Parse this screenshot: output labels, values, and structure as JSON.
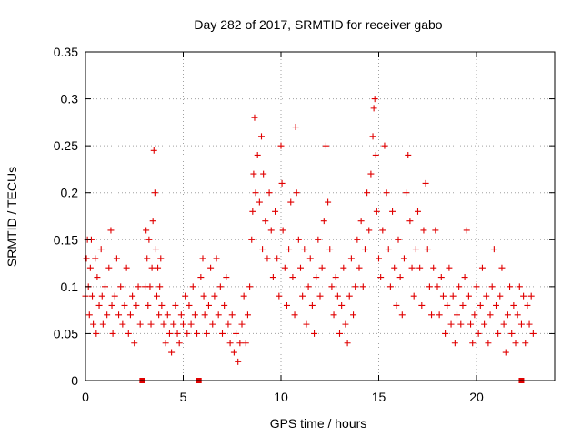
{
  "chart_data": {
    "type": "scatter",
    "title": "Day 282 of 2017, SRMTID for receiver gabo",
    "xlabel": "GPS time / hours",
    "ylabel": "SRMTID / TECUs",
    "xlim": [
      0,
      24
    ],
    "ylim": [
      0,
      0.35
    ],
    "x_ticks": [
      "0",
      "5",
      "10",
      "15",
      "20"
    ],
    "y_ticks": [
      "0",
      "0.05",
      "0.1",
      "0.15",
      "0.2",
      "0.25",
      "0.3",
      "0.35"
    ],
    "grid": true,
    "marker": "+",
    "series_color": "#e00000",
    "data_gap_markers_x": [
      2.9,
      5.8,
      22.3
    ],
    "series": [
      {
        "name": "SRMTID",
        "points": [
          [
            0.0,
            0.09
          ],
          [
            0.05,
            0.13
          ],
          [
            0.1,
            0.15
          ],
          [
            0.15,
            0.1
          ],
          [
            0.2,
            0.07
          ],
          [
            0.25,
            0.12
          ],
          [
            0.3,
            0.15
          ],
          [
            0.35,
            0.09
          ],
          [
            0.4,
            0.06
          ],
          [
            0.5,
            0.13
          ],
          [
            0.55,
            0.05
          ],
          [
            0.6,
            0.11
          ],
          [
            0.7,
            0.08
          ],
          [
            0.8,
            0.14
          ],
          [
            0.85,
            0.09
          ],
          [
            0.9,
            0.06
          ],
          [
            1.0,
            0.1
          ],
          [
            1.1,
            0.07
          ],
          [
            1.2,
            0.12
          ],
          [
            1.3,
            0.16
          ],
          [
            1.35,
            0.08
          ],
          [
            1.4,
            0.05
          ],
          [
            1.5,
            0.09
          ],
          [
            1.6,
            0.13
          ],
          [
            1.7,
            0.07
          ],
          [
            1.8,
            0.1
          ],
          [
            1.9,
            0.06
          ],
          [
            2.0,
            0.08
          ],
          [
            2.1,
            0.12
          ],
          [
            2.2,
            0.05
          ],
          [
            2.3,
            0.07
          ],
          [
            2.4,
            0.09
          ],
          [
            2.5,
            0.04
          ],
          [
            2.6,
            0.08
          ],
          [
            2.7,
            0.1
          ],
          [
            2.8,
            0.06
          ],
          [
            3.05,
            0.1
          ],
          [
            3.1,
            0.16
          ],
          [
            3.15,
            0.13
          ],
          [
            3.2,
            0.08
          ],
          [
            3.25,
            0.15
          ],
          [
            3.3,
            0.1
          ],
          [
            3.35,
            0.06
          ],
          [
            3.4,
            0.12
          ],
          [
            3.45,
            0.17
          ],
          [
            3.5,
            0.245
          ],
          [
            3.55,
            0.2
          ],
          [
            3.6,
            0.14
          ],
          [
            3.65,
            0.09
          ],
          [
            3.7,
            0.12
          ],
          [
            3.75,
            0.07
          ],
          [
            3.8,
            0.1
          ],
          [
            3.85,
            0.13
          ],
          [
            3.9,
            0.08
          ],
          [
            4.0,
            0.06
          ],
          [
            4.1,
            0.04
          ],
          [
            4.2,
            0.07
          ],
          [
            4.3,
            0.05
          ],
          [
            4.4,
            0.03
          ],
          [
            4.5,
            0.06
          ],
          [
            4.6,
            0.08
          ],
          [
            4.7,
            0.05
          ],
          [
            4.8,
            0.04
          ],
          [
            4.9,
            0.07
          ],
          [
            5.0,
            0.06
          ],
          [
            5.1,
            0.09
          ],
          [
            5.2,
            0.05
          ],
          [
            5.3,
            0.08
          ],
          [
            5.4,
            0.06
          ],
          [
            5.5,
            0.1
          ],
          [
            5.6,
            0.07
          ],
          [
            5.7,
            0.05
          ],
          [
            5.9,
            0.11
          ],
          [
            6.0,
            0.13
          ],
          [
            6.05,
            0.09
          ],
          [
            6.1,
            0.07
          ],
          [
            6.2,
            0.05
          ],
          [
            6.3,
            0.08
          ],
          [
            6.4,
            0.12
          ],
          [
            6.5,
            0.06
          ],
          [
            6.6,
            0.09
          ],
          [
            6.7,
            0.13
          ],
          [
            6.8,
            0.07
          ],
          [
            6.9,
            0.1
          ],
          [
            7.0,
            0.05
          ],
          [
            7.1,
            0.08
          ],
          [
            7.2,
            0.11
          ],
          [
            7.3,
            0.06
          ],
          [
            7.4,
            0.04
          ],
          [
            7.5,
            0.07
          ],
          [
            7.6,
            0.03
          ],
          [
            7.7,
            0.05
          ],
          [
            7.8,
            0.02
          ],
          [
            7.9,
            0.04
          ],
          [
            8.0,
            0.06
          ],
          [
            8.1,
            0.09
          ],
          [
            8.2,
            0.04
          ],
          [
            8.3,
            0.07
          ],
          [
            8.4,
            0.1
          ],
          [
            8.5,
            0.15
          ],
          [
            8.55,
            0.18
          ],
          [
            8.6,
            0.22
          ],
          [
            8.65,
            0.28
          ],
          [
            8.7,
            0.2
          ],
          [
            8.8,
            0.24
          ],
          [
            8.9,
            0.19
          ],
          [
            9.0,
            0.26
          ],
          [
            9.05,
            0.14
          ],
          [
            9.1,
            0.22
          ],
          [
            9.2,
            0.17
          ],
          [
            9.3,
            0.13
          ],
          [
            9.4,
            0.2
          ],
          [
            9.5,
            0.16
          ],
          [
            9.6,
            0.11
          ],
          [
            9.7,
            0.18
          ],
          [
            9.8,
            0.13
          ],
          [
            9.9,
            0.09
          ],
          [
            10.0,
            0.25
          ],
          [
            10.05,
            0.21
          ],
          [
            10.1,
            0.16
          ],
          [
            10.2,
            0.12
          ],
          [
            10.3,
            0.08
          ],
          [
            10.4,
            0.14
          ],
          [
            10.5,
            0.19
          ],
          [
            10.6,
            0.11
          ],
          [
            10.7,
            0.07
          ],
          [
            10.75,
            0.27
          ],
          [
            10.8,
            0.2
          ],
          [
            10.9,
            0.15
          ],
          [
            11.0,
            0.12
          ],
          [
            11.1,
            0.09
          ],
          [
            11.2,
            0.14
          ],
          [
            11.3,
            0.06
          ],
          [
            11.4,
            0.1
          ],
          [
            11.5,
            0.13
          ],
          [
            11.6,
            0.08
          ],
          [
            11.7,
            0.05
          ],
          [
            11.8,
            0.11
          ],
          [
            11.9,
            0.15
          ],
          [
            12.0,
            0.09
          ],
          [
            12.1,
            0.12
          ],
          [
            12.2,
            0.17
          ],
          [
            12.3,
            0.25
          ],
          [
            12.4,
            0.19
          ],
          [
            12.5,
            0.14
          ],
          [
            12.6,
            0.1
          ],
          [
            12.7,
            0.07
          ],
          [
            12.8,
            0.11
          ],
          [
            12.9,
            0.09
          ],
          [
            13.0,
            0.05
          ],
          [
            13.1,
            0.08
          ],
          [
            13.2,
            0.12
          ],
          [
            13.3,
            0.06
          ],
          [
            13.4,
            0.04
          ],
          [
            13.5,
            0.09
          ],
          [
            13.6,
            0.13
          ],
          [
            13.7,
            0.07
          ],
          [
            13.8,
            0.1
          ],
          [
            13.9,
            0.15
          ],
          [
            14.0,
            0.12
          ],
          [
            14.1,
            0.17
          ],
          [
            14.2,
            0.1
          ],
          [
            14.3,
            0.14
          ],
          [
            14.4,
            0.2
          ],
          [
            14.5,
            0.16
          ],
          [
            14.6,
            0.22
          ],
          [
            14.7,
            0.26
          ],
          [
            14.75,
            0.29
          ],
          [
            14.8,
            0.3
          ],
          [
            14.85,
            0.24
          ],
          [
            14.9,
            0.18
          ],
          [
            15.0,
            0.13
          ],
          [
            15.1,
            0.11
          ],
          [
            15.2,
            0.16
          ],
          [
            15.3,
            0.25
          ],
          [
            15.4,
            0.2
          ],
          [
            15.5,
            0.14
          ],
          [
            15.6,
            0.1
          ],
          [
            15.7,
            0.18
          ],
          [
            15.8,
            0.12
          ],
          [
            15.9,
            0.08
          ],
          [
            16.0,
            0.15
          ],
          [
            16.1,
            0.11
          ],
          [
            16.2,
            0.07
          ],
          [
            16.3,
            0.13
          ],
          [
            16.4,
            0.2
          ],
          [
            16.5,
            0.24
          ],
          [
            16.6,
            0.17
          ],
          [
            16.7,
            0.12
          ],
          [
            16.8,
            0.09
          ],
          [
            16.9,
            0.14
          ],
          [
            17.0,
            0.18
          ],
          [
            17.1,
            0.12
          ],
          [
            17.2,
            0.08
          ],
          [
            17.3,
            0.16
          ],
          [
            17.4,
            0.21
          ],
          [
            17.5,
            0.14
          ],
          [
            17.6,
            0.1
          ],
          [
            17.7,
            0.07
          ],
          [
            17.8,
            0.12
          ],
          [
            17.9,
            0.16
          ],
          [
            18.0,
            0.1
          ],
          [
            18.1,
            0.07
          ],
          [
            18.2,
            0.11
          ],
          [
            18.3,
            0.09
          ],
          [
            18.4,
            0.05
          ],
          [
            18.5,
            0.08
          ],
          [
            18.6,
            0.12
          ],
          [
            18.7,
            0.06
          ],
          [
            18.8,
            0.09
          ],
          [
            18.9,
            0.04
          ],
          [
            19.0,
            0.07
          ],
          [
            19.1,
            0.1
          ],
          [
            19.2,
            0.06
          ],
          [
            19.3,
            0.08
          ],
          [
            19.4,
            0.11
          ],
          [
            19.5,
            0.16
          ],
          [
            19.6,
            0.09
          ],
          [
            19.7,
            0.06
          ],
          [
            19.8,
            0.04
          ],
          [
            19.9,
            0.07
          ],
          [
            20.0,
            0.1
          ],
          [
            20.1,
            0.05
          ],
          [
            20.2,
            0.08
          ],
          [
            20.3,
            0.12
          ],
          [
            20.4,
            0.06
          ],
          [
            20.5,
            0.09
          ],
          [
            20.6,
            0.04
          ],
          [
            20.7,
            0.07
          ],
          [
            20.8,
            0.1
          ],
          [
            20.9,
            0.14
          ],
          [
            21.0,
            0.08
          ],
          [
            21.1,
            0.05
          ],
          [
            21.2,
            0.09
          ],
          [
            21.3,
            0.12
          ],
          [
            21.4,
            0.06
          ],
          [
            21.5,
            0.03
          ],
          [
            21.6,
            0.07
          ],
          [
            21.7,
            0.1
          ],
          [
            21.8,
            0.05
          ],
          [
            21.9,
            0.08
          ],
          [
            22.0,
            0.04
          ],
          [
            22.1,
            0.07
          ],
          [
            22.2,
            0.1
          ],
          [
            22.3,
            0.06
          ],
          [
            22.4,
            0.09
          ],
          [
            22.5,
            0.04
          ],
          [
            22.6,
            0.08
          ],
          [
            22.7,
            0.06
          ],
          [
            22.8,
            0.09
          ],
          [
            22.9,
            0.05
          ]
        ]
      }
    ]
  }
}
